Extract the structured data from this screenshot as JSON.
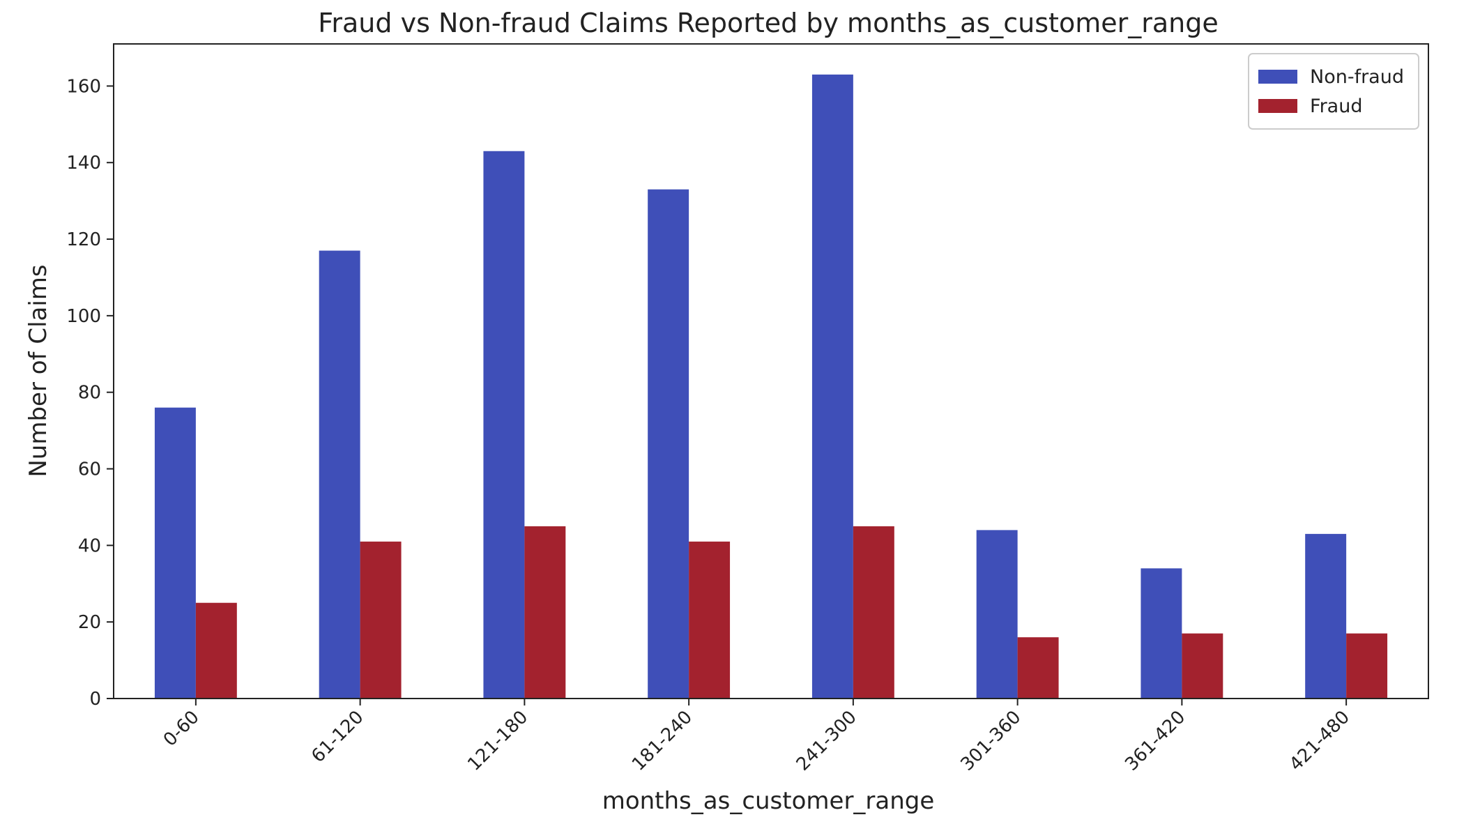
{
  "chart_data": {
    "type": "bar",
    "title": "Fraud vs Non-fraud Claims Reported by months_as_customer_range",
    "xlabel": "months_as_customer_range",
    "ylabel": "Number of Claims",
    "categories": [
      "0-60",
      "61-120",
      "121-180",
      "181-240",
      "241-300",
      "301-360",
      "361-420",
      "421-480"
    ],
    "series": [
      {
        "name": "Non-fraud",
        "color": "#3f4fb8",
        "values": [
          76,
          117,
          143,
          133,
          163,
          44,
          34,
          43
        ]
      },
      {
        "name": "Fraud",
        "color": "#a3222e",
        "values": [
          25,
          41,
          45,
          41,
          45,
          16,
          17,
          17
        ]
      }
    ],
    "ylim": [
      0,
      171
    ],
    "yticks": [
      0,
      20,
      40,
      60,
      80,
      100,
      120,
      140,
      160
    ],
    "grid": false,
    "legend_position": "top-right",
    "xtick_rotation": 45
  }
}
